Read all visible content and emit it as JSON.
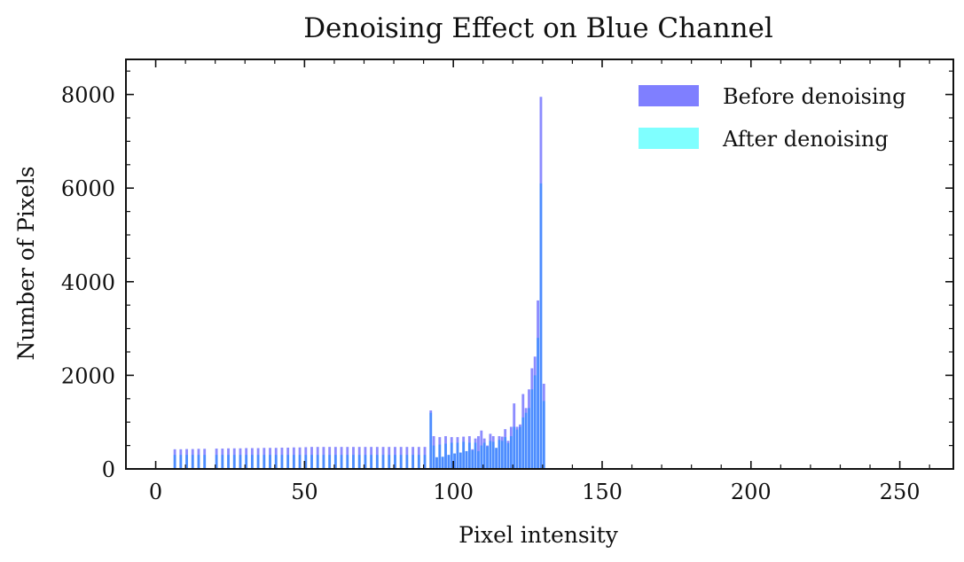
{
  "chart_data": {
    "type": "bar",
    "title": "Denoising Effect on Blue Channel",
    "xlabel": "Pixel intensity",
    "ylabel": "Number of Pixels",
    "xlim": [
      -10,
      268
    ],
    "ylim": [
      0,
      8750
    ],
    "xticks": [
      0,
      50,
      100,
      150,
      200,
      250
    ],
    "yticks": [
      0,
      2000,
      4000,
      6000,
      8000
    ],
    "legend_position": "top-right",
    "grid": false,
    "bin_width": 1,
    "series": [
      {
        "name": "Before denoising",
        "color": "#7f7fff",
        "x": [
          6,
          8,
          10,
          12,
          14,
          16,
          20,
          22,
          24,
          26,
          28,
          30,
          32,
          34,
          36,
          38,
          40,
          42,
          44,
          46,
          48,
          50,
          52,
          54,
          56,
          58,
          60,
          62,
          64,
          66,
          68,
          70,
          72,
          74,
          76,
          78,
          80,
          82,
          84,
          86,
          88,
          90,
          92,
          93,
          94,
          95,
          96,
          97,
          98,
          99,
          100,
          101,
          102,
          103,
          104,
          105,
          106,
          107,
          108,
          109,
          110,
          111,
          112,
          113,
          114,
          115,
          116,
          117,
          118,
          119,
          120,
          121,
          122,
          123,
          124,
          125,
          126,
          127,
          128,
          129,
          130
        ],
        "values": [
          420,
          420,
          425,
          425,
          430,
          430,
          435,
          435,
          440,
          440,
          440,
          445,
          445,
          445,
          450,
          450,
          450,
          455,
          455,
          460,
          460,
          465,
          470,
          470,
          470,
          470,
          470,
          470,
          470,
          470,
          470,
          470,
          470,
          470,
          470,
          470,
          470,
          470,
          470,
          470,
          470,
          470,
          1250,
          700,
          250,
          680,
          260,
          700,
          300,
          680,
          330,
          680,
          350,
          690,
          380,
          700,
          420,
          650,
          700,
          820,
          650,
          500,
          750,
          700,
          450,
          700,
          690,
          850,
          600,
          900,
          1400,
          900,
          950,
          1600,
          1300,
          1700,
          2150,
          2400,
          3600,
          7950,
          1820
        ]
      },
      {
        "name": "After denoising",
        "color": "#7fffff",
        "x": [
          6,
          8,
          10,
          12,
          14,
          16,
          20,
          22,
          24,
          26,
          28,
          30,
          32,
          34,
          36,
          38,
          40,
          42,
          44,
          46,
          48,
          50,
          52,
          54,
          56,
          58,
          60,
          62,
          64,
          66,
          68,
          70,
          72,
          74,
          76,
          78,
          80,
          82,
          84,
          86,
          88,
          90,
          92,
          93,
          94,
          95,
          96,
          97,
          98,
          99,
          100,
          101,
          102,
          103,
          104,
          105,
          106,
          107,
          108,
          109,
          110,
          111,
          112,
          113,
          114,
          115,
          116,
          117,
          118,
          119,
          120,
          121,
          122,
          123,
          124,
          125,
          126,
          127,
          128,
          129,
          130
        ],
        "values": [
          300,
          300,
          300,
          300,
          300,
          300,
          300,
          300,
          300,
          300,
          300,
          300,
          300,
          300,
          300,
          300,
          300,
          300,
          300,
          300,
          300,
          300,
          300,
          300,
          300,
          300,
          300,
          300,
          300,
          300,
          300,
          300,
          300,
          300,
          300,
          300,
          300,
          300,
          300,
          300,
          300,
          300,
          1200,
          500,
          250,
          520,
          260,
          540,
          300,
          560,
          330,
          560,
          350,
          580,
          380,
          560,
          400,
          560,
          380,
          500,
          560,
          480,
          600,
          580,
          450,
          620,
          600,
          680,
          550,
          700,
          900,
          840,
          900,
          1100,
          1200,
          1300,
          1700,
          2000,
          2800,
          6100,
          1450
        ]
      }
    ]
  }
}
